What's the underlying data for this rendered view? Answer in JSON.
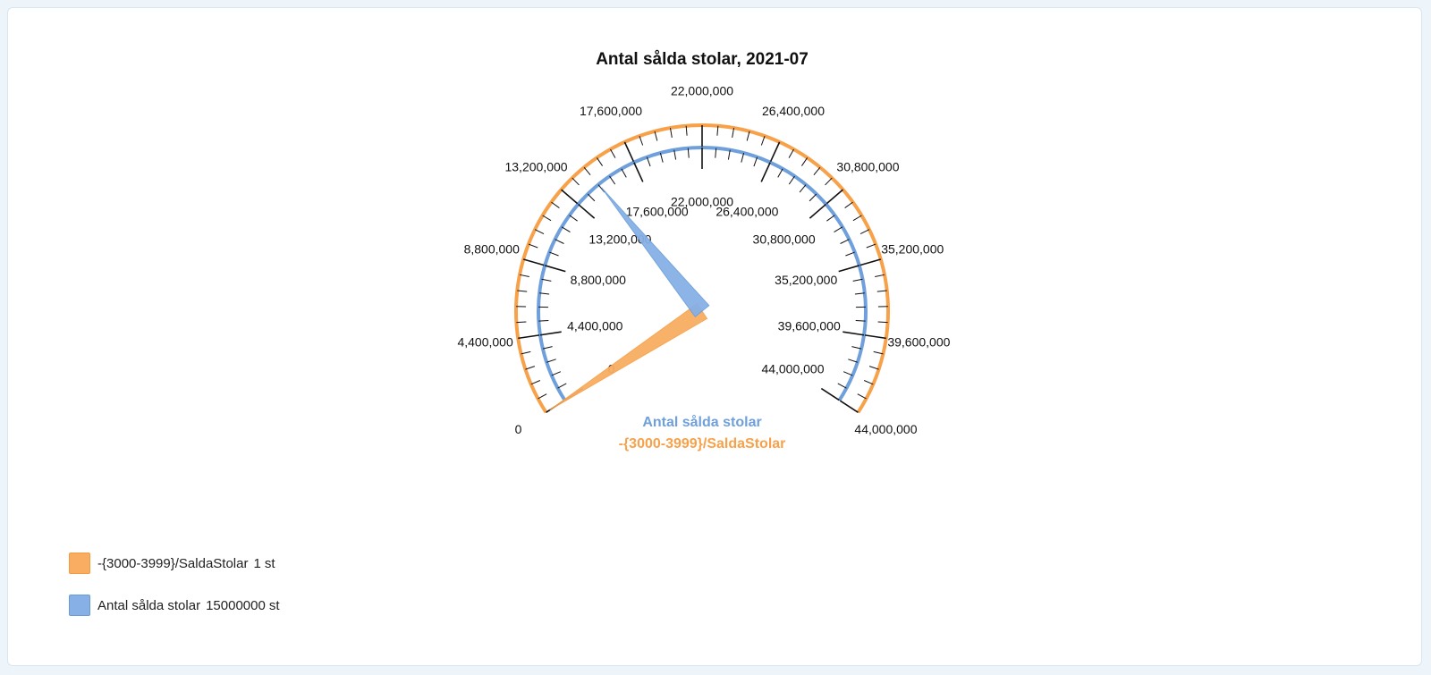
{
  "chart_data": {
    "type": "gauge",
    "title": "Antal sålda stolar, 2021-07",
    "min": 0,
    "max": 44000000,
    "tick_labels": [
      "0",
      "4,400,000",
      "8,800,000",
      "13,200,000",
      "17,600,000",
      "22,000,000",
      "26,400,000",
      "30,800,000",
      "35,200,000",
      "39,600,000",
      "44,000,000"
    ],
    "series": [
      {
        "name": "-{3000-3999}/SaldaStolar",
        "value": 1,
        "value_label": "1",
        "unit": "st",
        "color": "#f7a24a",
        "fill": "#f8ad62"
      },
      {
        "name": "Antal sålda stolar",
        "value": 15000000,
        "value_label": "15000000",
        "unit": "st",
        "color": "#6fa0dc",
        "fill": "#86b0e6"
      }
    ]
  }
}
